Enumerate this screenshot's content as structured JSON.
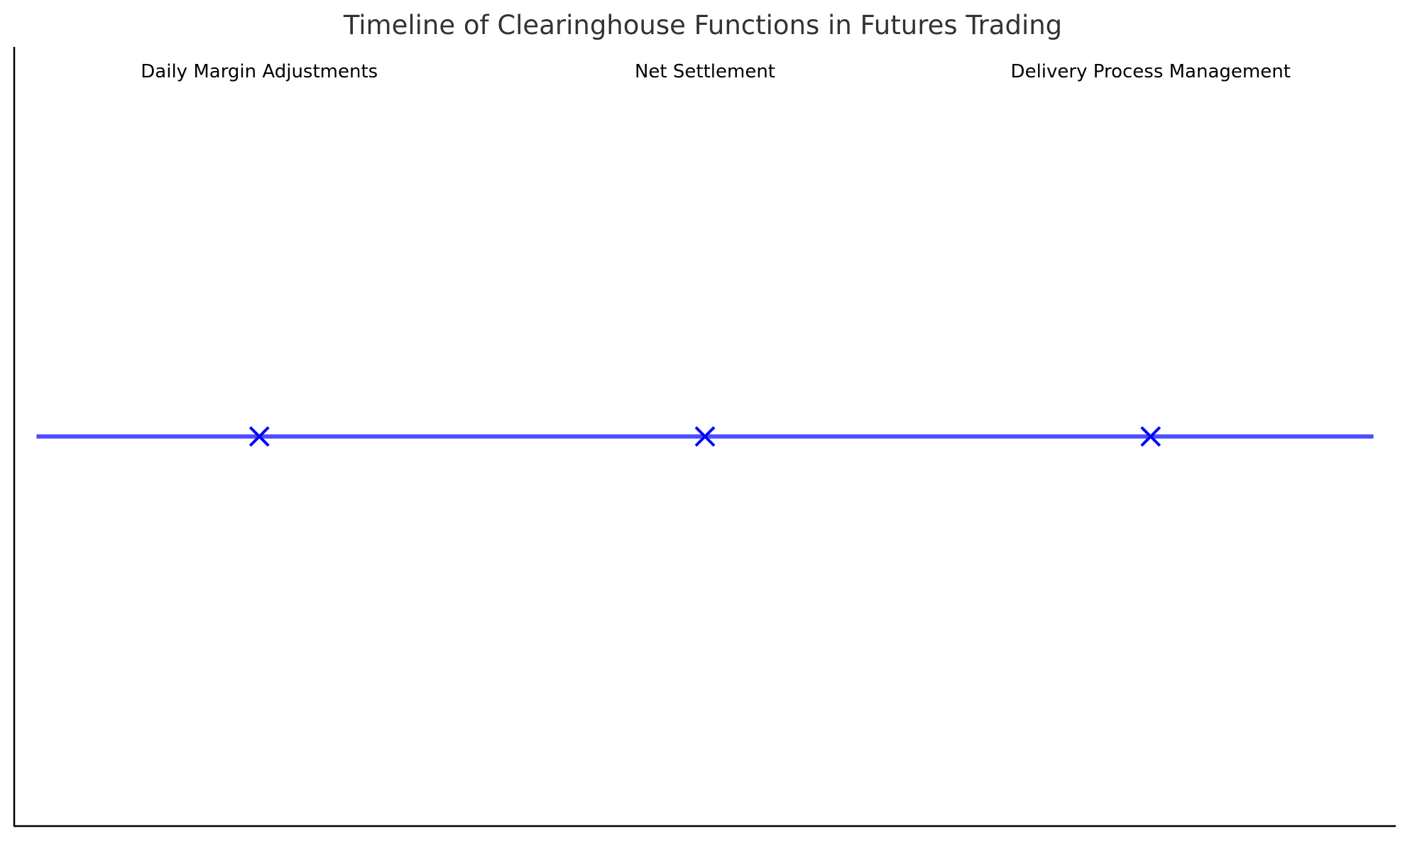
{
  "chart_data": {
    "type": "line",
    "title": "Timeline of Clearinghouse Functions in Futures Trading",
    "xlabel": "",
    "ylabel": "",
    "grid": false,
    "x_range": [
      0.5,
      6.5
    ],
    "y_range": [
      0,
      2
    ],
    "timeline": {
      "x": [
        0.5,
        6.5
      ],
      "y": [
        1,
        1
      ],
      "color": "#0000ff",
      "alpha": 0.7
    },
    "events": [
      {
        "label": "Daily Margin Adjustments",
        "x": 1.5,
        "y": 1
      },
      {
        "label": "Net Settlement",
        "x": 3.5,
        "y": 1
      },
      {
        "label": "Delivery Process Management",
        "x": 5.5,
        "y": 1
      }
    ],
    "marker": {
      "shape": "x",
      "color": "#0000ff"
    },
    "colors": {
      "title": "#333333",
      "axis": "#000000",
      "labels": "#000000"
    }
  }
}
